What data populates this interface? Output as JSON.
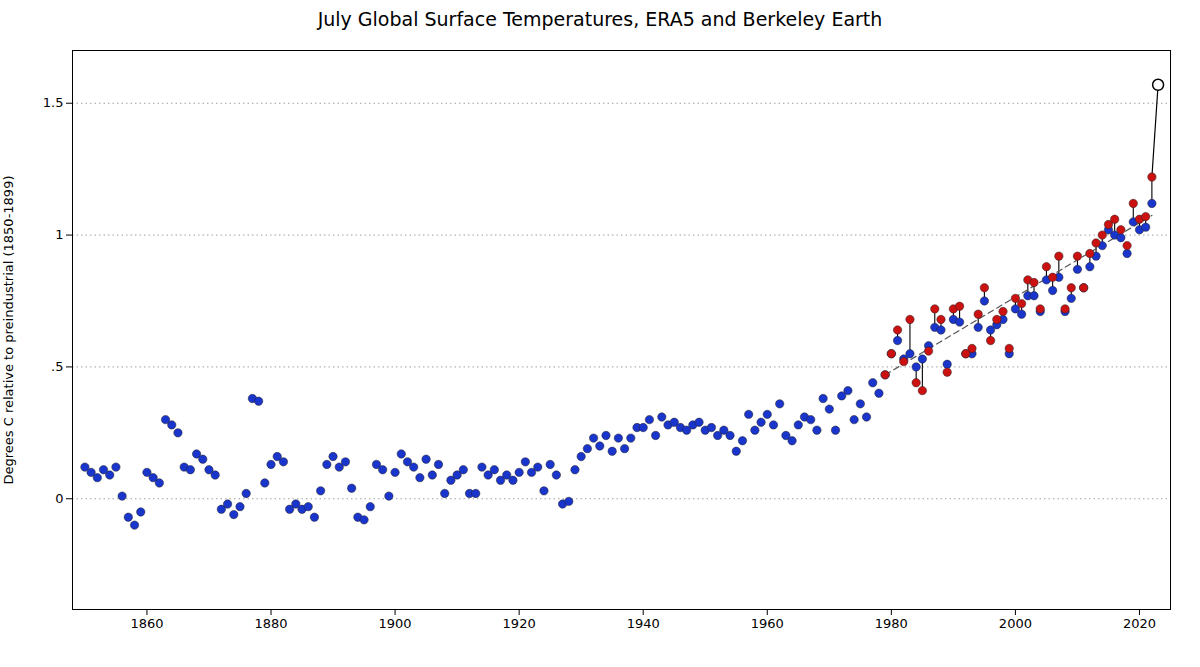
{
  "chart_data": {
    "type": "scatter",
    "title": "July Global Surface Temperatures, ERA5 and Berkeley Earth",
    "ylabel": "Degrees C relative to preindustrial (1850-1899)",
    "xlim": [
      1848,
      2025
    ],
    "xticks": [
      1860,
      1880,
      1900,
      1920,
      1940,
      1960,
      1980,
      2000,
      2020
    ],
    "ylim": [
      -0.42,
      1.7
    ],
    "yticks": [
      0,
      {
        "value": 0.5,
        "label": ".5"
      },
      1,
      1.5
    ],
    "grid": "y",
    "series": [
      {
        "type": "rule",
        "color": "#000000",
        "x": [
          1979,
          1980,
          1981,
          1982,
          1983,
          1984,
          1985,
          1986,
          1987,
          1988,
          1989,
          1990,
          1991,
          1992,
          1993,
          1994,
          1995,
          1996,
          1997,
          1998,
          1999,
          2000,
          2001,
          2002,
          2003,
          2004,
          2005,
          2006,
          2007,
          2008,
          2009,
          2010,
          2011,
          2012,
          2013,
          2014,
          2015,
          2016,
          2017,
          2018,
          2019,
          2020,
          2021,
          2022
        ],
        "y1": [
          0.47,
          0.55,
          0.6,
          0.53,
          0.55,
          0.5,
          0.53,
          0.58,
          0.65,
          0.64,
          0.51,
          0.68,
          0.67,
          0.55,
          0.55,
          0.65,
          0.75,
          0.64,
          0.66,
          0.68,
          0.55,
          0.72,
          0.7,
          0.77,
          0.77,
          0.71,
          0.83,
          0.79,
          0.84,
          0.71,
          0.76,
          0.87,
          0.8,
          0.88,
          0.92,
          0.96,
          1.02,
          1.0,
          0.99,
          0.93,
          1.05,
          1.02,
          1.03,
          1.12
        ],
        "y2": [
          0.47,
          0.55,
          0.64,
          0.52,
          0.68,
          0.44,
          0.41,
          0.56,
          0.72,
          0.68,
          0.48,
          0.72,
          0.73,
          0.55,
          0.57,
          0.7,
          0.8,
          0.6,
          0.68,
          0.71,
          0.57,
          0.76,
          0.74,
          0.83,
          0.82,
          0.72,
          0.88,
          0.84,
          0.92,
          0.72,
          0.8,
          0.92,
          0.8,
          0.93,
          0.97,
          1.0,
          1.04,
          1.06,
          1.02,
          0.96,
          1.12,
          1.06,
          1.07,
          1.22
        ]
      },
      {
        "type": "line",
        "line_style": "dashed",
        "color": "#555555",
        "x": [
          1979,
          2022
        ],
        "values": [
          0.46997,
          1.07458
        ]
      },
      {
        "type": "line",
        "line_style": "solid",
        "color": "#000000",
        "x": [
          2022,
          2023
        ],
        "values": [
          1.22,
          1.57
        ]
      },
      {
        "type": "scatter",
        "marker": "circle",
        "color": "#1a35cc",
        "x": [
          1850,
          1851,
          1852,
          1853,
          1854,
          1855,
          1856,
          1857,
          1858,
          1859,
          1860,
          1861,
          1862,
          1863,
          1864,
          1865,
          1866,
          1867,
          1868,
          1869,
          1870,
          1871,
          1872,
          1873,
          1874,
          1875,
          1876,
          1877,
          1878,
          1879,
          1880,
          1881,
          1882,
          1883,
          1884,
          1885,
          1886,
          1887,
          1888,
          1889,
          1890,
          1891,
          1892,
          1893,
          1894,
          1895,
          1896,
          1897,
          1898,
          1899,
          1900,
          1901,
          1902,
          1903,
          1904,
          1905,
          1906,
          1907,
          1908,
          1909,
          1910,
          1911,
          1912,
          1913,
          1914,
          1915,
          1916,
          1917,
          1918,
          1919,
          1920,
          1921,
          1922,
          1923,
          1924,
          1925,
          1926,
          1927,
          1928,
          1929,
          1930,
          1931,
          1932,
          1933,
          1934,
          1935,
          1936,
          1937,
          1938,
          1939,
          1940,
          1941,
          1942,
          1943,
          1944,
          1945,
          1946,
          1947,
          1948,
          1949,
          1950,
          1951,
          1952,
          1953,
          1954,
          1955,
          1956,
          1957,
          1958,
          1959,
          1960,
          1961,
          1962,
          1963,
          1964,
          1965,
          1966,
          1967,
          1968,
          1969,
          1970,
          1971,
          1972,
          1973,
          1974,
          1975,
          1976,
          1977,
          1978,
          1979,
          1980,
          1981,
          1982,
          1983,
          1984,
          1985,
          1986,
          1987,
          1988,
          1989,
          1990,
          1991,
          1992,
          1993,
          1994,
          1995,
          1996,
          1997,
          1998,
          1999,
          2000,
          2001,
          2002,
          2003,
          2004,
          2005,
          2006,
          2007,
          2008,
          2009,
          2010,
          2011,
          2012,
          2013,
          2014,
          2015,
          2016,
          2017,
          2018,
          2019,
          2020,
          2021,
          2022
        ],
        "values": [
          0.12,
          0.1,
          0.08,
          0.11,
          0.09,
          0.12,
          0.01,
          -0.07,
          -0.1,
          -0.05,
          0.1,
          0.08,
          0.06,
          0.3,
          0.28,
          0.25,
          0.12,
          0.11,
          0.17,
          0.15,
          0.11,
          0.09,
          -0.04,
          -0.02,
          -0.06,
          -0.03,
          0.02,
          0.38,
          0.37,
          0.06,
          0.13,
          0.16,
          0.14,
          -0.04,
          -0.02,
          -0.04,
          -0.03,
          -0.07,
          0.03,
          0.13,
          0.16,
          0.12,
          0.14,
          0.04,
          -0.07,
          -0.08,
          -0.03,
          0.13,
          0.11,
          0.01,
          0.1,
          0.17,
          0.14,
          0.12,
          0.08,
          0.15,
          0.09,
          0.13,
          0.02,
          0.07,
          0.09,
          0.11,
          0.02,
          0.02,
          0.12,
          0.09,
          0.11,
          0.07,
          0.09,
          0.07,
          0.1,
          0.14,
          0.1,
          0.12,
          0.03,
          0.13,
          0.09,
          -0.02,
          -0.01,
          0.11,
          0.16,
          0.19,
          0.23,
          0.2,
          0.24,
          0.18,
          0.23,
          0.19,
          0.23,
          0.27,
          0.27,
          0.3,
          0.24,
          0.31,
          0.28,
          0.29,
          0.27,
          0.26,
          0.28,
          0.29,
          0.26,
          0.27,
          0.24,
          0.26,
          0.24,
          0.18,
          0.22,
          0.32,
          0.26,
          0.29,
          0.32,
          0.28,
          0.36,
          0.24,
          0.22,
          0.28,
          0.31,
          0.3,
          0.26,
          0.38,
          0.34,
          0.26,
          0.39,
          0.41,
          0.3,
          0.36,
          0.31,
          0.44,
          0.4,
          0.47,
          0.55,
          0.6,
          0.53,
          0.55,
          0.5,
          0.53,
          0.58,
          0.65,
          0.64,
          0.51,
          0.68,
          0.67,
          0.55,
          0.55,
          0.65,
          0.75,
          0.64,
          0.66,
          0.68,
          0.55,
          0.72,
          0.7,
          0.77,
          0.77,
          0.71,
          0.83,
          0.79,
          0.84,
          0.71,
          0.76,
          0.87,
          0.8,
          0.88,
          0.92,
          0.96,
          1.02,
          1.0,
          0.99,
          0.93,
          1.05,
          1.02,
          1.03,
          1.12
        ]
      },
      {
        "type": "scatter",
        "marker": "circle",
        "color": "#cc1111",
        "x": [
          1979,
          1980,
          1981,
          1982,
          1983,
          1984,
          1985,
          1986,
          1987,
          1988,
          1989,
          1990,
          1991,
          1992,
          1993,
          1994,
          1995,
          1996,
          1997,
          1998,
          1999,
          2000,
          2001,
          2002,
          2003,
          2004,
          2005,
          2006,
          2007,
          2008,
          2009,
          2010,
          2011,
          2012,
          2013,
          2014,
          2015,
          2016,
          2017,
          2018,
          2019,
          2020,
          2021,
          2022
        ],
        "values": [
          0.47,
          0.55,
          0.64,
          0.52,
          0.68,
          0.44,
          0.41,
          0.56,
          0.72,
          0.68,
          0.48,
          0.72,
          0.73,
          0.55,
          0.57,
          0.7,
          0.8,
          0.6,
          0.68,
          0.71,
          0.57,
          0.76,
          0.74,
          0.83,
          0.82,
          0.72,
          0.88,
          0.84,
          0.92,
          0.72,
          0.8,
          0.92,
          0.8,
          0.93,
          0.97,
          1.0,
          1.04,
          1.06,
          1.02,
          0.96,
          1.12,
          1.06,
          1.07,
          1.22
        ]
      },
      {
        "type": "scatter",
        "marker": "open_circle",
        "color": "#ffffff",
        "x": [
          2023
        ],
        "values": [
          1.57
        ]
      }
    ]
  }
}
